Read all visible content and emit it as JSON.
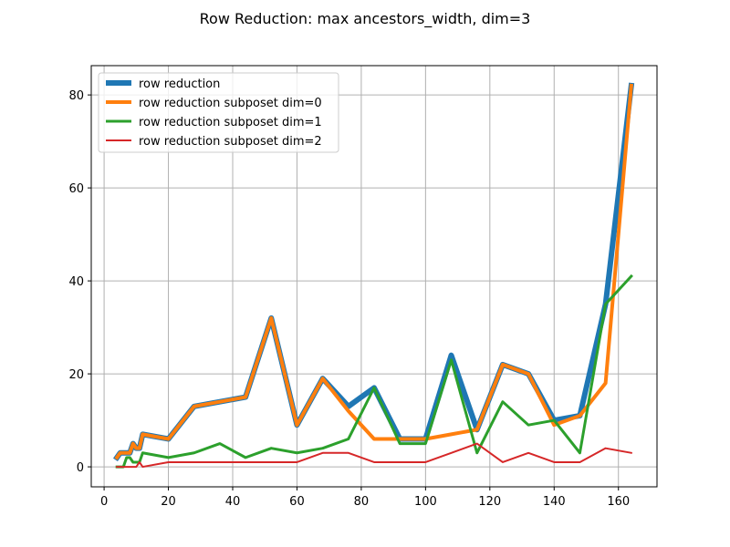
{
  "chart_data": {
    "type": "line",
    "title": "Row Reduction: max ancestors_width, dim=3",
    "xlabel": "",
    "ylabel": "",
    "xlim": [
      -4,
      172
    ],
    "ylim": [
      -4.3,
      86.3
    ],
    "xticks": [
      0,
      20,
      40,
      60,
      80,
      100,
      120,
      140,
      160
    ],
    "yticks": [
      0,
      20,
      40,
      60,
      80
    ],
    "grid": true,
    "legend_position": "top-left",
    "series": [
      {
        "name": "row reduction",
        "color": "#1f77b4",
        "linewidth": 6,
        "x": [
          4,
          5,
          6,
          7,
          8,
          9,
          10,
          11,
          12,
          20,
          28,
          36,
          44,
          52,
          60,
          68,
          76,
          84,
          92,
          100,
          108,
          116,
          124,
          132,
          140,
          148,
          156,
          164
        ],
        "y": [
          2,
          3,
          3,
          3,
          3,
          5,
          4,
          4,
          7,
          6,
          13,
          14,
          15,
          32,
          9,
          19,
          13,
          17,
          6,
          6,
          24,
          8,
          22,
          20,
          10,
          11,
          35,
          82
        ]
      },
      {
        "name": "row reduction subposet dim=0",
        "color": "#ff7f0e",
        "linewidth": 4,
        "x": [
          4,
          5,
          6,
          7,
          8,
          9,
          10,
          11,
          12,
          20,
          28,
          36,
          44,
          52,
          60,
          68,
          76,
          84,
          92,
          100,
          108,
          116,
          124,
          132,
          140,
          148,
          156,
          164
        ],
        "y": [
          2,
          3,
          3,
          3,
          3,
          5,
          4,
          4,
          7,
          6,
          13,
          14,
          15,
          32,
          9,
          19,
          12,
          6,
          6,
          6,
          7,
          8,
          22,
          20,
          9,
          11,
          18,
          82
        ]
      },
      {
        "name": "row reduction subposet dim=1",
        "color": "#2ca02c",
        "linewidth": 3,
        "x": [
          4,
          5,
          6,
          7,
          8,
          9,
          10,
          11,
          12,
          20,
          28,
          36,
          44,
          52,
          60,
          68,
          76,
          84,
          92,
          100,
          108,
          116,
          124,
          132,
          140,
          148,
          156,
          164
        ],
        "y": [
          0,
          0,
          0,
          2,
          2,
          1,
          1,
          1,
          3,
          2,
          3,
          5,
          2,
          4,
          3,
          4,
          6,
          17,
          5,
          5,
          23,
          3,
          14,
          9,
          10,
          3,
          35,
          41
        ]
      },
      {
        "name": "row reduction subposet dim=2",
        "color": "#d62728",
        "linewidth": 2,
        "x": [
          4,
          5,
          6,
          7,
          8,
          9,
          10,
          11,
          12,
          20,
          28,
          36,
          44,
          52,
          60,
          68,
          76,
          84,
          92,
          100,
          108,
          116,
          124,
          132,
          140,
          148,
          156,
          164
        ],
        "y": [
          0,
          0,
          0,
          0,
          0,
          0,
          0,
          1,
          0,
          1,
          1,
          1,
          1,
          1,
          1,
          3,
          3,
          1,
          1,
          1,
          3,
          5,
          1,
          3,
          1,
          1,
          4,
          3
        ]
      }
    ]
  }
}
